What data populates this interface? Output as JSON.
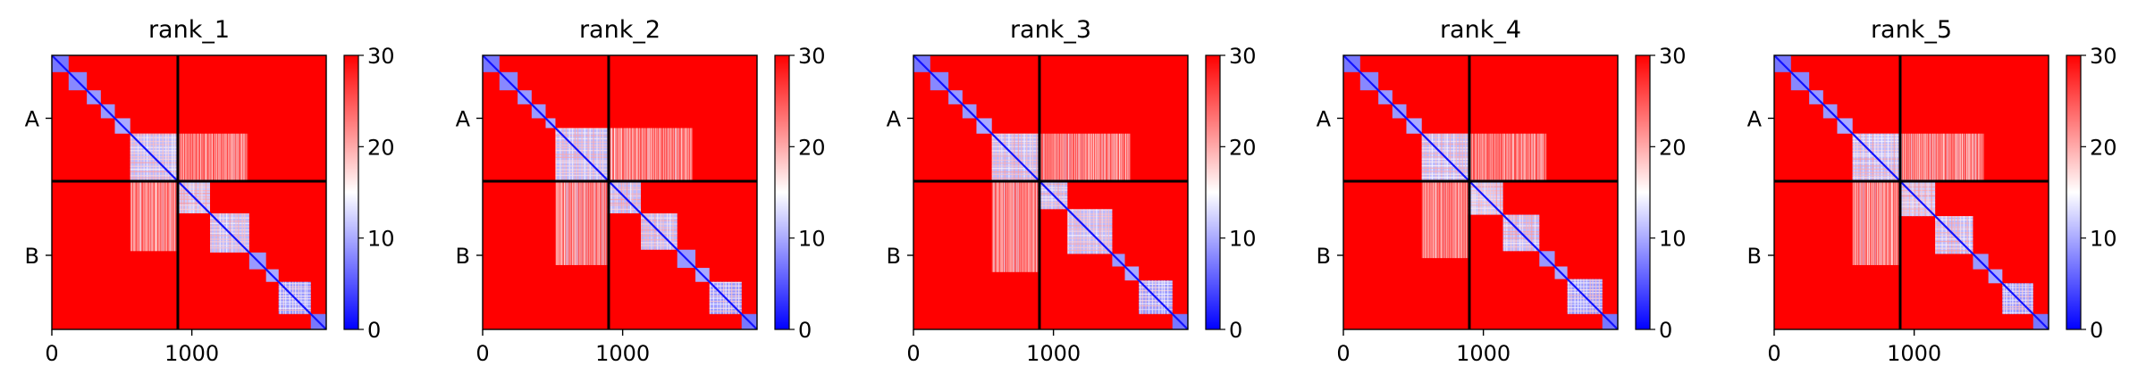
{
  "chart_data": {
    "type": "heatmap",
    "colormap": {
      "name": "bwr",
      "low": "#0000ff",
      "mid": "#ffffff",
      "high": "#ff0000"
    },
    "panels": [
      {
        "title": "rank_1",
        "blocks": [
          [
            0,
            120
          ],
          [
            120,
            250
          ],
          [
            250,
            350
          ],
          [
            350,
            450
          ],
          [
            450,
            560
          ],
          [
            560,
            890
          ],
          [
            890,
            1130
          ],
          [
            1130,
            1410
          ],
          [
            1410,
            1530
          ],
          [
            1530,
            1620
          ],
          [
            1620,
            1850
          ],
          [
            1850,
            1960
          ]
        ],
        "block_values": [
          3,
          4,
          5,
          5,
          6,
          7,
          8,
          7,
          5,
          6,
          5,
          3
        ],
        "mid_bands": [
          [
            560,
            890,
            20
          ]
        ],
        "scatter": [
          [
            560,
            890,
            890,
            1400,
            17
          ],
          [
            890,
            1400,
            560,
            890,
            18
          ]
        ]
      },
      {
        "title": "rank_2",
        "blocks": [
          [
            0,
            120
          ],
          [
            120,
            250
          ],
          [
            250,
            350
          ],
          [
            350,
            450
          ],
          [
            450,
            520
          ],
          [
            520,
            890
          ],
          [
            890,
            1130
          ],
          [
            1130,
            1390
          ],
          [
            1390,
            1520
          ],
          [
            1520,
            1620
          ],
          [
            1620,
            1850
          ],
          [
            1850,
            1960
          ]
        ],
        "block_values": [
          3,
          4,
          5,
          5,
          6,
          7,
          7,
          7,
          5,
          6,
          5,
          3
        ],
        "mid_bands": [
          [
            520,
            890,
            21
          ]
        ],
        "scatter": [
          [
            520,
            890,
            890,
            1500,
            16
          ],
          [
            890,
            1500,
            520,
            890,
            17
          ]
        ]
      },
      {
        "title": "rank_3",
        "blocks": [
          [
            0,
            120
          ],
          [
            120,
            250
          ],
          [
            250,
            350
          ],
          [
            350,
            450
          ],
          [
            450,
            560
          ],
          [
            560,
            890
          ],
          [
            890,
            1100
          ],
          [
            1100,
            1420
          ],
          [
            1420,
            1510
          ],
          [
            1510,
            1610
          ],
          [
            1610,
            1850
          ],
          [
            1850,
            1960
          ]
        ],
        "block_values": [
          3,
          4,
          5,
          5,
          6,
          7,
          7,
          7,
          5,
          6,
          5,
          3
        ],
        "mid_bands": [
          [
            560,
            890,
            20
          ]
        ],
        "scatter": [
          [
            560,
            890,
            890,
            1550,
            17
          ],
          [
            890,
            1550,
            560,
            890,
            17
          ]
        ]
      },
      {
        "title": "rank_4",
        "blocks": [
          [
            0,
            120
          ],
          [
            120,
            250
          ],
          [
            250,
            350
          ],
          [
            350,
            450
          ],
          [
            450,
            560
          ],
          [
            560,
            890
          ],
          [
            890,
            1140
          ],
          [
            1140,
            1400
          ],
          [
            1400,
            1510
          ],
          [
            1510,
            1600
          ],
          [
            1600,
            1850
          ],
          [
            1850,
            1960
          ]
        ],
        "block_values": [
          3,
          4,
          5,
          5,
          6,
          7,
          8,
          7,
          5,
          6,
          5,
          3
        ],
        "mid_bands": [
          [
            560,
            890,
            20
          ]
        ],
        "scatter": [
          [
            560,
            890,
            890,
            1450,
            17
          ],
          [
            890,
            1450,
            560,
            890,
            18
          ]
        ]
      },
      {
        "title": "rank_5",
        "blocks": [
          [
            0,
            120
          ],
          [
            120,
            250
          ],
          [
            250,
            350
          ],
          [
            350,
            450
          ],
          [
            450,
            560
          ],
          [
            560,
            890
          ],
          [
            890,
            1150
          ],
          [
            1150,
            1420
          ],
          [
            1420,
            1530
          ],
          [
            1530,
            1630
          ],
          [
            1630,
            1850
          ],
          [
            1850,
            1960
          ]
        ],
        "block_values": [
          3,
          4,
          5,
          5,
          6,
          7,
          8,
          7,
          5,
          6,
          5,
          3
        ],
        "mid_bands": [
          [
            560,
            890,
            19
          ]
        ],
        "scatter": [
          [
            560,
            890,
            890,
            1500,
            16
          ],
          [
            890,
            1500,
            560,
            890,
            17
          ]
        ]
      }
    ],
    "matrix_size": 1960,
    "chain_boundary": 900,
    "chain_labels": [
      "A",
      "B"
    ],
    "x_ticks": [
      0,
      1000
    ],
    "x_tick_labels": [
      "0",
      "1000"
    ],
    "colorbar_ticks": [
      0,
      10,
      20,
      30
    ],
    "colorbar_tick_labels": [
      "0",
      "10",
      "20",
      "30"
    ],
    "vmin": 0,
    "vmax": 30,
    "background_value": 30
  }
}
